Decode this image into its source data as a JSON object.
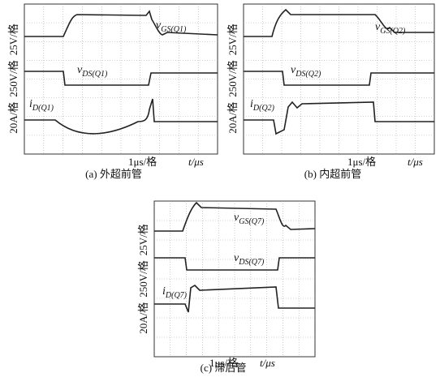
{
  "panels": [
    {
      "y_axis_labels": [
        "20A/格",
        "250V/格",
        "25V/格"
      ],
      "traces": [
        {
          "symbol": "v",
          "subscript": "GS(Q1)"
        },
        {
          "symbol": "v",
          "subscript": "DS(Q1)"
        },
        {
          "symbol": "i",
          "subscript": "D(Q1)"
        }
      ],
      "x_scale": "1μs/格",
      "x_axis": "t/μs",
      "caption": "(a)  外超前管"
    },
    {
      "y_axis_labels": [
        "20A/格",
        "250V/格",
        "25V/格"
      ],
      "traces": [
        {
          "symbol": "v",
          "subscript": "GS(Q2)"
        },
        {
          "symbol": "v",
          "subscript": "DS(Q2)"
        },
        {
          "symbol": "i",
          "subscript": "D(Q2)"
        }
      ],
      "x_scale": "1μs/格",
      "x_axis": "t/μs",
      "caption": "(b)  内超前管"
    },
    {
      "y_axis_labels": [
        "20A/格",
        "250V/格",
        "25V/格"
      ],
      "traces": [
        {
          "symbol": "v",
          "subscript": "GS(Q7)"
        },
        {
          "symbol": "v",
          "subscript": "DS(Q7)"
        },
        {
          "symbol": "i",
          "subscript": "D(Q7)"
        }
      ],
      "x_scale": "1μs/格",
      "x_axis": "t/μs",
      "caption": "(c)  滞后管"
    }
  ]
}
